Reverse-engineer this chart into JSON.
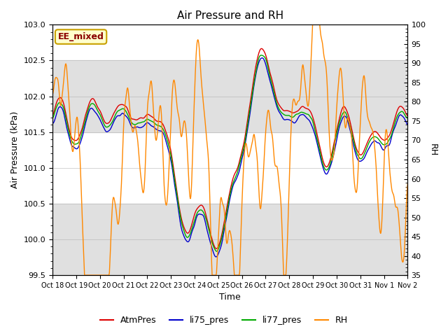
{
  "title": "Air Pressure and RH",
  "xlabel": "Time",
  "ylabel_left": "Air Pressure (kPa)",
  "ylabel_right": "RH",
  "ylim_left": [
    99.5,
    103.0
  ],
  "ylim_right": [
    35,
    100
  ],
  "yticks_left": [
    99.5,
    100.0,
    100.5,
    101.0,
    101.5,
    102.0,
    102.5,
    103.0
  ],
  "yticks_right": [
    35,
    40,
    45,
    50,
    55,
    60,
    65,
    70,
    75,
    80,
    85,
    90,
    95,
    100
  ],
  "xtick_labels": [
    "Oct 18",
    "Oct 19",
    "Oct 20",
    "Oct 21",
    "Oct 22",
    "Oct 23",
    "Oct 24",
    "Oct 25",
    "Oct 26",
    "Oct 27",
    "Oct 28",
    "Oct 29",
    "Oct 30",
    "Oct 31",
    "Nov 1",
    "Nov 2"
  ],
  "band_color": "#e0e0e0",
  "annotation_text": "EE_mixed",
  "annotation_color": "#8b0000",
  "annotation_bg": "#ffffcc",
  "annotation_border": "#c8a000",
  "colors": {
    "AtmPres": "#dd0000",
    "li75_pres": "#0000cc",
    "li77_pres": "#00aa00",
    "RH": "#ff8800"
  },
  "linewidth": 1.0
}
